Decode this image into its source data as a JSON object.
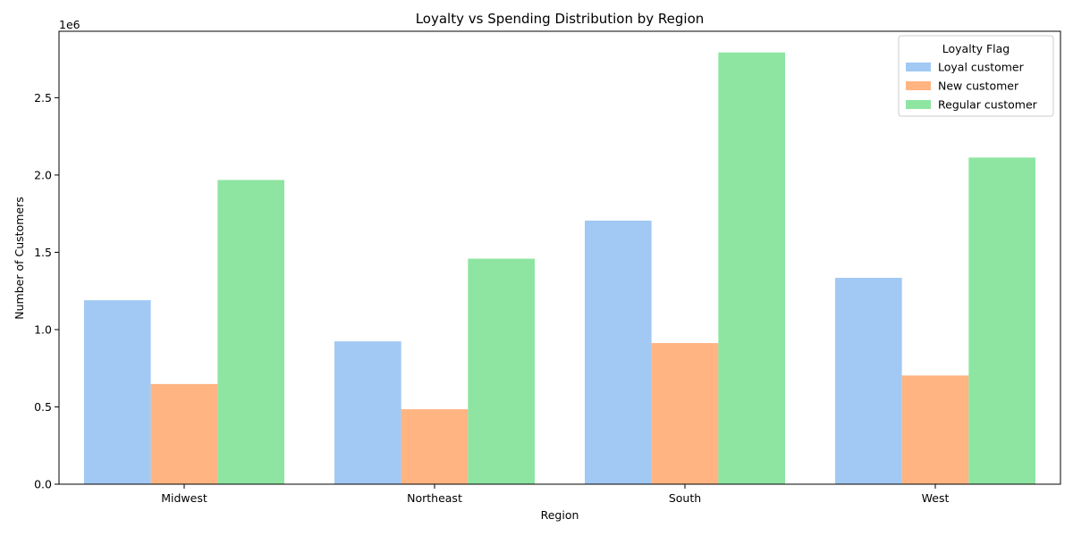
{
  "chart_data": {
    "type": "bar",
    "title": "Loyalty vs Spending Distribution by Region",
    "xlabel": "Region",
    "ylabel": "Number of Customers",
    "y_offset_label": "1e6",
    "categories": [
      "Midwest",
      "Northeast",
      "South",
      "West"
    ],
    "series": [
      {
        "name": "Loyal customer",
        "color": "#a1c9f4",
        "values": [
          1190000,
          924000,
          1705000,
          1335000
        ]
      },
      {
        "name": "New customer",
        "color": "#ffb482",
        "values": [
          648000,
          485000,
          913000,
          703000
        ]
      },
      {
        "name": "Regular customer",
        "color": "#8de5a1",
        "values": [
          1968000,
          1459000,
          2793000,
          2113000
        ]
      }
    ],
    "ylim": [
      0,
      2930000
    ],
    "yticks": [
      0,
      500000,
      1000000,
      1500000,
      2000000,
      2500000
    ],
    "ytick_labels": [
      "0.0",
      "0.5",
      "1.0",
      "1.5",
      "2.0",
      "2.5"
    ],
    "legend": {
      "title": "Loyalty Flag",
      "placement": "top-right"
    },
    "grid": false
  }
}
